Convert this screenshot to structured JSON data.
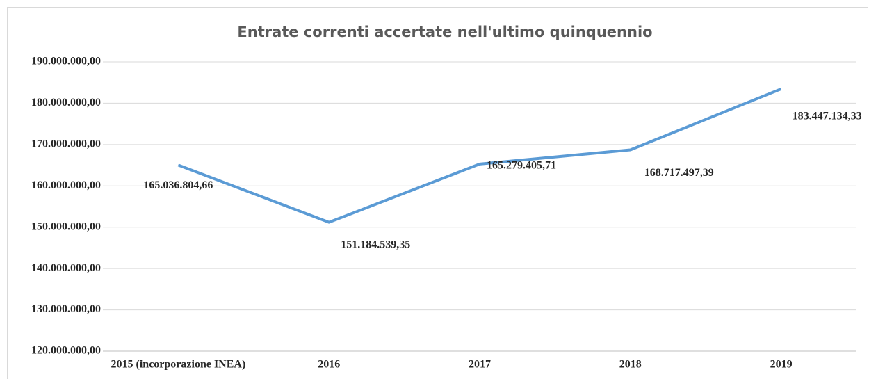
{
  "chart_data": {
    "type": "line",
    "title": "Entrate correnti accertate nell'ultimo quinquennio",
    "categories": [
      "2015 (incorporazione INEA)",
      "2016",
      "2017",
      "2018",
      "2019"
    ],
    "series": [
      {
        "name": "Entrate correnti accertate",
        "color": "#5b9bd5",
        "values": [
          165036804.66,
          151184539.35,
          165279405.71,
          168717497.39,
          183447134.33
        ],
        "value_labels": [
          "165.036.804,66",
          "151.184.539,35",
          "165.279.405,71",
          "168.717.497,39",
          "183.447.134,33"
        ]
      }
    ],
    "ylim": [
      120000000,
      190000000
    ],
    "yticks": [
      {
        "value": 120000000,
        "label": "120.000.000,00"
      },
      {
        "value": 130000000,
        "label": "130.000.000,00"
      },
      {
        "value": 140000000,
        "label": "140.000.000,00"
      },
      {
        "value": 150000000,
        "label": "150.000.000,00"
      },
      {
        "value": 160000000,
        "label": "160.000.000,00"
      },
      {
        "value": 170000000,
        "label": "170.000.000,00"
      },
      {
        "value": 180000000,
        "label": "180.000.000,00"
      },
      {
        "value": 190000000,
        "label": "190.000.000,00"
      }
    ],
    "grid": true
  }
}
